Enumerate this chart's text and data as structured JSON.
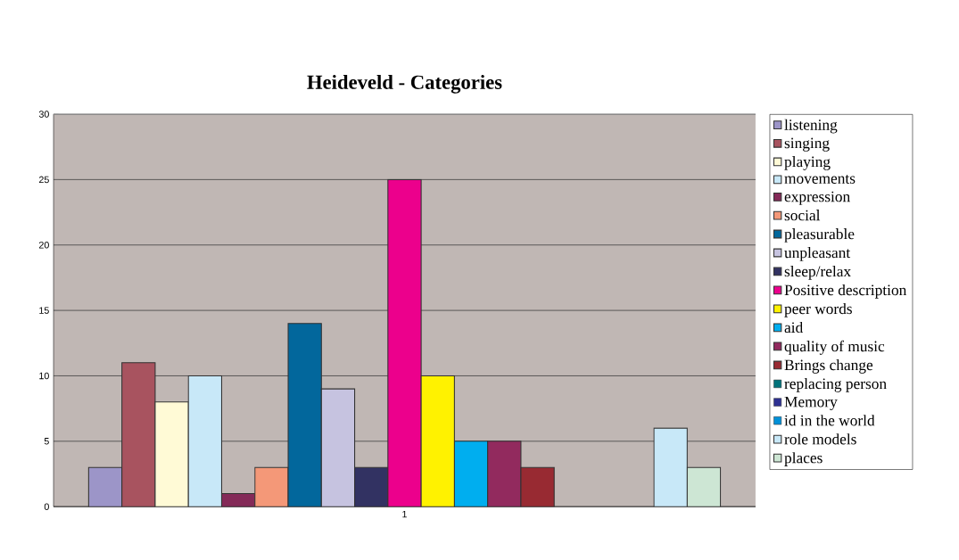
{
  "chart_data": {
    "type": "bar",
    "title": "Heideveld - Categories",
    "categories": [
      "1"
    ],
    "series": [
      {
        "name": "listening",
        "color": "#9c95c8",
        "values": [
          3
        ]
      },
      {
        "name": "singing",
        "color": "#a8535f",
        "values": [
          11
        ]
      },
      {
        "name": "playing",
        "color": "#fffad6",
        "values": [
          8
        ]
      },
      {
        "name": "movements",
        "color": "#c8e8f8",
        "values": [
          10
        ]
      },
      {
        "name": "expression",
        "color": "#842a58",
        "values": [
          1
        ]
      },
      {
        "name": "social",
        "color": "#f49878",
        "values": [
          3
        ]
      },
      {
        "name": "pleasurable",
        "color": "#02679c",
        "values": [
          14
        ]
      },
      {
        "name": "unpleasant",
        "color": "#c6c3e0",
        "values": [
          9
        ]
      },
      {
        "name": "sleep/relax",
        "color": "#323262",
        "values": [
          3
        ]
      },
      {
        "name": "Positive description",
        "color": "#ec008c",
        "values": [
          25
        ]
      },
      {
        "name": "peer words",
        "color": "#fff200",
        "values": [
          10
        ]
      },
      {
        "name": "aid",
        "color": "#00aeef",
        "values": [
          5
        ]
      },
      {
        "name": "quality of music",
        "color": "#922a5e",
        "values": [
          5
        ]
      },
      {
        "name": "Brings change",
        "color": "#982a32",
        "values": [
          3
        ]
      },
      {
        "name": "replacing person",
        "color": "#00727a",
        "values": [
          null
        ]
      },
      {
        "name": "Memory",
        "color": "#2e3192",
        "values": [
          null
        ]
      },
      {
        "name": "id in the world",
        "color": "#0090d8",
        "values": [
          null
        ]
      },
      {
        "name": "role models",
        "color": "#c8e8f8",
        "values": [
          6
        ]
      },
      {
        "name": "places",
        "color": "#cde6d4",
        "values": [
          3
        ]
      }
    ],
    "ylim": [
      0,
      30
    ],
    "yticks": [
      0,
      5,
      10,
      15,
      20,
      25,
      30
    ],
    "grid": "y",
    "legend": "right"
  }
}
